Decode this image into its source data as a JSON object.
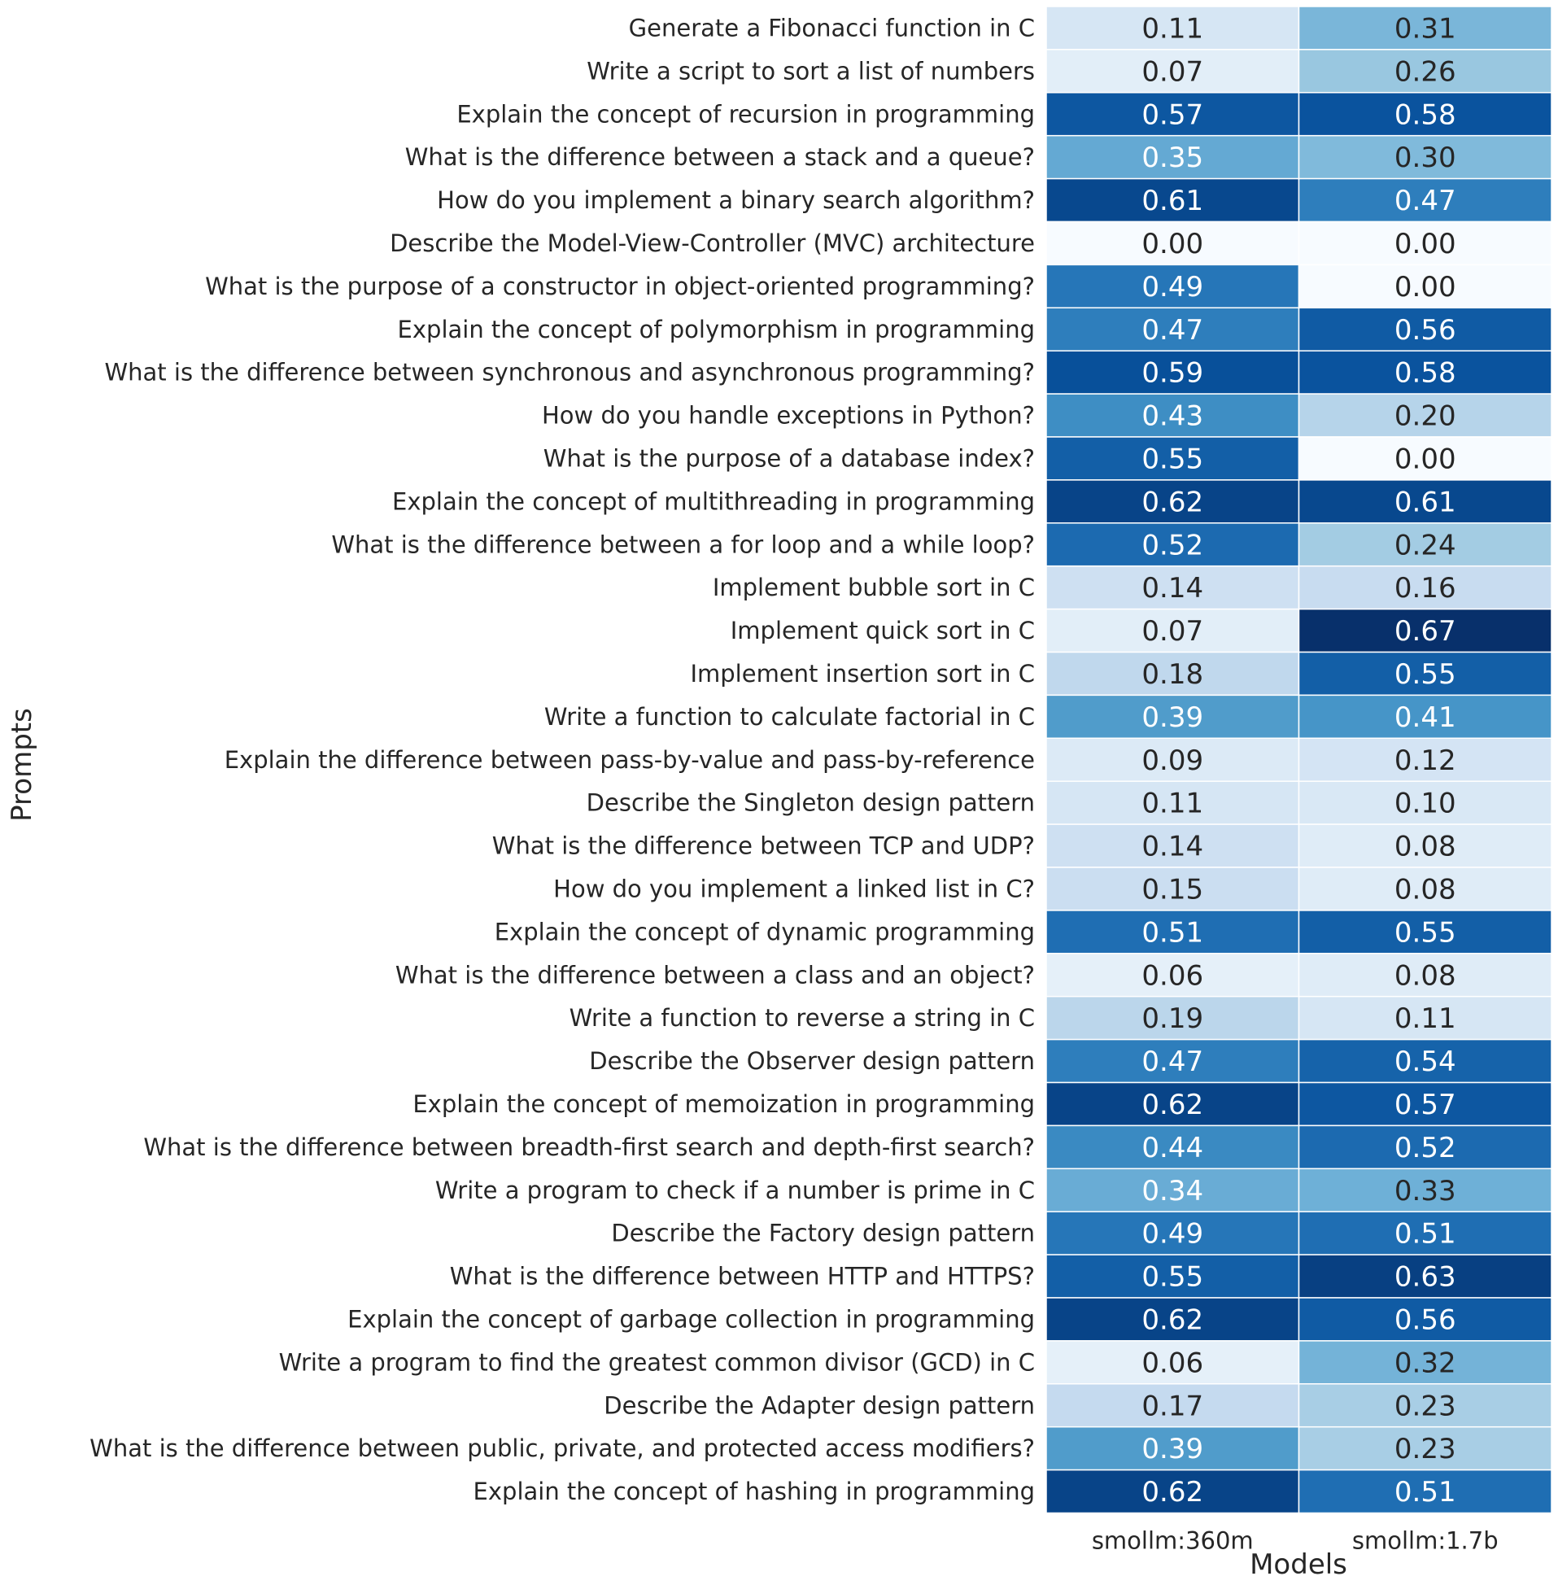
{
  "chart_data": {
    "type": "heatmap",
    "xlabel": "Models",
    "ylabel": "Prompts",
    "colormap": "Blues",
    "vmin": 0.0,
    "vmax": 0.67,
    "models": [
      "smollm:360m",
      "smollm:1.7b"
    ],
    "prompts": [
      "Generate a Fibonacci function in C",
      "Write a script to sort a list of numbers",
      "Explain the concept of recursion in programming",
      "What is the difference between a stack and a queue?",
      "How do you implement a binary search algorithm?",
      "Describe the Model-View-Controller (MVC) architecture",
      "What is the purpose of a constructor in object-oriented programming?",
      "Explain the concept of polymorphism in programming",
      "What is the difference between synchronous and asynchronous programming?",
      "How do you handle exceptions in Python?",
      "What is the purpose of a database index?",
      "Explain the concept of multithreading in programming",
      "What is the difference between a for loop and a while loop?",
      "Implement bubble sort in C",
      "Implement quick sort in C",
      "Implement insertion sort in C",
      "Write a function to calculate factorial in C",
      "Explain the difference between pass-by-value and pass-by-reference",
      "Describe the Singleton design pattern",
      "What is the difference between TCP and UDP?",
      "How do you implement a linked list in C?",
      "Explain the concept of dynamic programming",
      "What is the difference between a class and an object?",
      "Write a function to reverse a string in C",
      "Describe the Observer design pattern",
      "Explain the concept of memoization in programming",
      "What is the difference between breadth-first search and depth-first search?",
      "Write a program to check if a number is prime in C",
      "Describe the Factory design pattern",
      "What is the difference between HTTP and HTTPS?",
      "Explain the concept of garbage collection in programming",
      "Write a program to find the greatest common divisor (GCD) in C",
      "Describe the Adapter design pattern",
      "What is the difference between public, private, and protected access modifiers?",
      "Explain the concept of hashing in programming"
    ],
    "values": [
      [
        0.11,
        0.31
      ],
      [
        0.07,
        0.26
      ],
      [
        0.57,
        0.58
      ],
      [
        0.35,
        0.3
      ],
      [
        0.61,
        0.47
      ],
      [
        0.0,
        0.0
      ],
      [
        0.49,
        0.0
      ],
      [
        0.47,
        0.56
      ],
      [
        0.59,
        0.58
      ],
      [
        0.43,
        0.2
      ],
      [
        0.55,
        0.0
      ],
      [
        0.62,
        0.61
      ],
      [
        0.52,
        0.24
      ],
      [
        0.14,
        0.16
      ],
      [
        0.07,
        0.67
      ],
      [
        0.18,
        0.55
      ],
      [
        0.39,
        0.41
      ],
      [
        0.09,
        0.12
      ],
      [
        0.11,
        0.1
      ],
      [
        0.14,
        0.08
      ],
      [
        0.15,
        0.08
      ],
      [
        0.51,
        0.55
      ],
      [
        0.06,
        0.08
      ],
      [
        0.19,
        0.11
      ],
      [
        0.47,
        0.54
      ],
      [
        0.62,
        0.57
      ],
      [
        0.44,
        0.52
      ],
      [
        0.34,
        0.33
      ],
      [
        0.49,
        0.51
      ],
      [
        0.55,
        0.63
      ],
      [
        0.62,
        0.56
      ],
      [
        0.06,
        0.32
      ],
      [
        0.17,
        0.23
      ],
      [
        0.39,
        0.23
      ],
      [
        0.62,
        0.51
      ]
    ],
    "annotation_format": "2 decimals"
  }
}
